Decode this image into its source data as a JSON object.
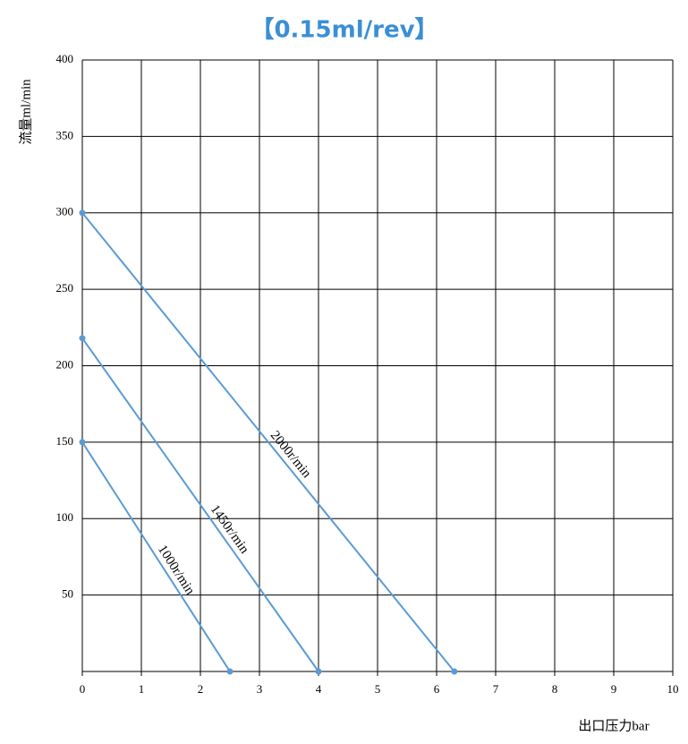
{
  "chart_data": {
    "type": "line",
    "title": "【0.15ml/rev】",
    "x_label": "出口压力bar",
    "y_label": "流量ml/min",
    "xlim": [
      0,
      10
    ],
    "xticks": [
      0,
      1,
      2,
      3,
      4,
      5,
      6,
      7,
      8,
      9,
      10
    ],
    "ylim": [
      0,
      400
    ],
    "yticks": [
      50,
      100,
      150,
      200,
      250,
      300,
      350,
      400
    ],
    "grid": true,
    "series": [
      {
        "name": "2000r/min",
        "color": "#5b9bd5",
        "x": [
          0,
          6.3
        ],
        "values": [
          300,
          0
        ]
      },
      {
        "name": "1450r/min",
        "color": "#5b9bd5",
        "x": [
          0,
          4
        ],
        "values": [
          218,
          0
        ]
      },
      {
        "name": "1000r/min",
        "color": "#5b9bd5",
        "x": [
          0,
          2.5
        ],
        "values": [
          150,
          0
        ]
      }
    ]
  }
}
